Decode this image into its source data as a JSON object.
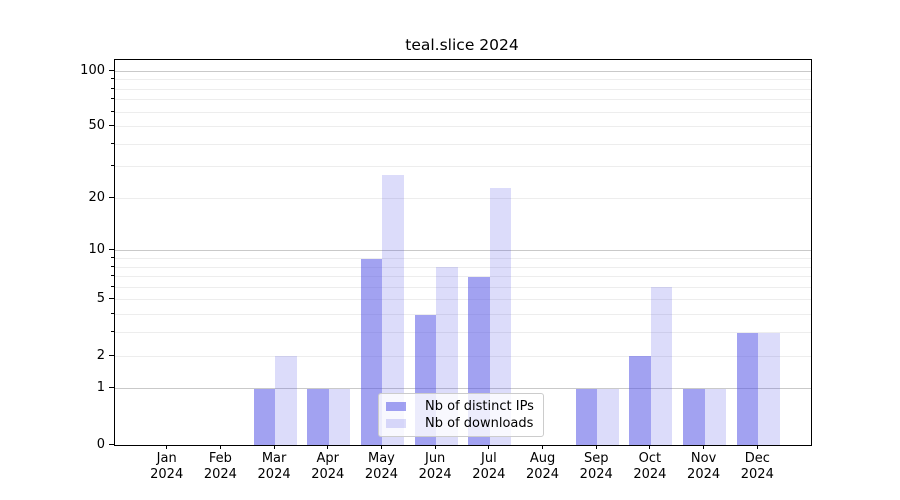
{
  "title": "teal.slice 2024",
  "chart_data": {
    "type": "bar",
    "title": "teal.slice 2024",
    "yscale": "log1p",
    "categories": [
      "Jan",
      "Feb",
      "Mar",
      "Apr",
      "May",
      "Jun",
      "Jul",
      "Aug",
      "Sep",
      "Oct",
      "Nov",
      "Dec"
    ],
    "category_year": "2024",
    "series": [
      {
        "name": "Nb of distinct IPs",
        "color": "rgba(80,80,228,0.53)",
        "color_hex": "#a5a5ef",
        "values": [
          0,
          0,
          1,
          1,
          9,
          4,
          7,
          0,
          1,
          2,
          1,
          3
        ]
      },
      {
        "name": "Nb of downloads",
        "color": "rgba(80,80,228,0.2)",
        "color_hex": "#dcdcf8",
        "values": [
          0,
          0,
          2,
          1,
          27,
          8,
          23,
          0,
          1,
          6,
          1,
          3
        ]
      }
    ],
    "ylim": [
      0,
      115
    ],
    "yticks_labeled": [
      0,
      1,
      2,
      5,
      10,
      20,
      50,
      100
    ],
    "gridlines_major": [
      1,
      10,
      100
    ],
    "gridlines_minor": [
      2,
      3,
      4,
      5,
      6,
      7,
      8,
      9,
      20,
      30,
      40,
      50,
      60,
      70,
      80,
      90
    ],
    "grid": true,
    "legend_position": "lower center, inside plot"
  },
  "colors": {
    "bar_ips_hex": "#a5a5ef",
    "bar_downloads_hex": "#dcdcf8",
    "grid_major": "#c9c9c9",
    "grid_minor": "#ededed",
    "axis": "#000000",
    "legend_border": "#cccccc",
    "legend_bg": "rgba(255,255,255,0.8)"
  }
}
